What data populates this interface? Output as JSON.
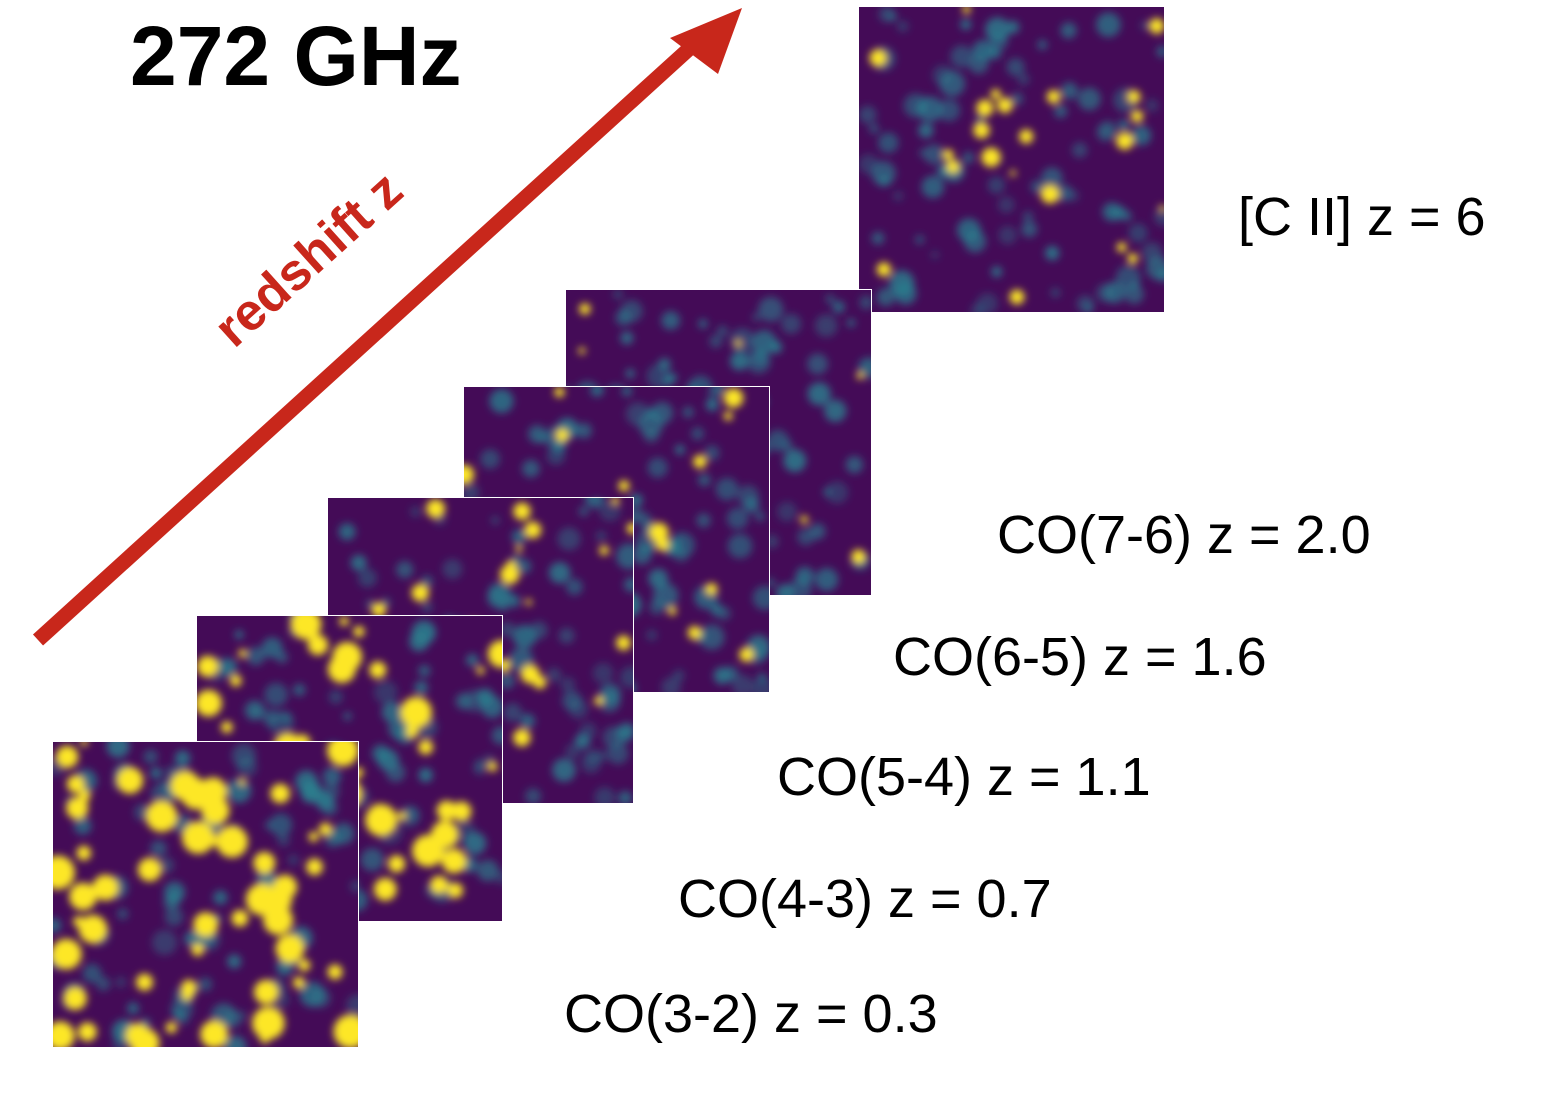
{
  "title": "272 GHz",
  "arrow_label": "redshift z",
  "colors": {
    "arrow": "#c8271b",
    "map_background": "#440b57",
    "map_mid": "#2a7f8e",
    "map_bright": "#fde725"
  },
  "slices": [
    {
      "label": "CO(3-2) z = 0.3",
      "seed": 11,
      "bright": 60
    },
    {
      "label": "CO(4-3) z = 0.7",
      "seed": 23,
      "bright": 55
    },
    {
      "label": "CO(5-4) z = 1.1",
      "seed": 37,
      "bright": 28
    },
    {
      "label": "CO(6-5) z = 1.6",
      "seed": 41,
      "bright": 18
    },
    {
      "label": "CO(7-6) z = 2.0",
      "seed": 53,
      "bright": 8
    },
    {
      "label": "[C II] z = 6",
      "seed": 67,
      "bright": 22
    }
  ]
}
